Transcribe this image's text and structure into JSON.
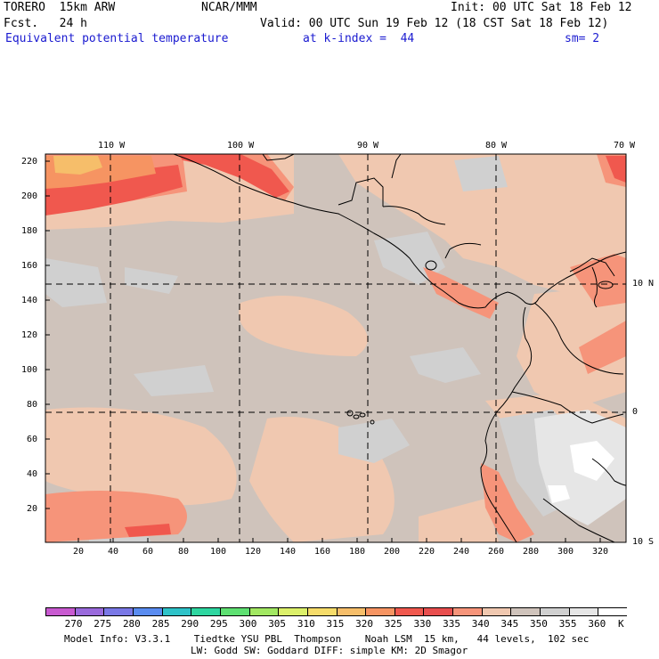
{
  "header": {
    "model": "TORERO  15km ARW",
    "center": "NCAR/MMM",
    "init": "Init: 00 UTC Sat 18 Feb 12",
    "fcst": "Fcst.   24 h",
    "valid": "Valid: 00 UTC Sun 19 Feb 12 (18 CST Sat 18 Feb 12)",
    "field": "Equivalent potential temperature",
    "level": "at k-index =  44",
    "smooth": "sm= 2"
  },
  "top_lon_labels": [
    "110 W",
    "100 W",
    "90 W",
    "80 W",
    "70 W"
  ],
  "right_lat_labels": [
    "10 N",
    "0",
    "10 S"
  ],
  "left_y_ticks": [
    "220",
    "200",
    "180",
    "160",
    "140",
    "120",
    "100",
    "80",
    "60",
    "40",
    "20"
  ],
  "bottom_x_ticks": [
    "20",
    "40",
    "60",
    "80",
    "100",
    "120",
    "140",
    "160",
    "180",
    "200",
    "220",
    "240",
    "260",
    "280",
    "300",
    "320"
  ],
  "colorbar": {
    "colors": [
      "#c85ad0",
      "#9a6adc",
      "#7a78e6",
      "#5a8cf0",
      "#2ec2c8",
      "#2ed6a0",
      "#5ee072",
      "#a2e862",
      "#dcf06a",
      "#f6dc6a",
      "#f6be6a",
      "#f69462",
      "#f0584e",
      "#e84e4e",
      "#f6947a",
      "#f0c8b0",
      "#cfc3bb",
      "#d0d0d0",
      "#e6e6e6",
      "#ffffff"
    ],
    "labels": [
      "270",
      "275",
      "280",
      "285",
      "290",
      "295",
      "300",
      "305",
      "310",
      "315",
      "320",
      "325",
      "330",
      "335",
      "340",
      "345",
      "350",
      "355",
      "360"
    ],
    "unit": "K"
  },
  "footer": {
    "line1": "Model Info: V3.3.1    Tiedtke YSU PBL  Thompson    Noah LSM  15 km,   44 levels,  102 sec",
    "line2": "LW: Godd SW: Goddard DIFF: simple KM: 2D Smagor"
  }
}
